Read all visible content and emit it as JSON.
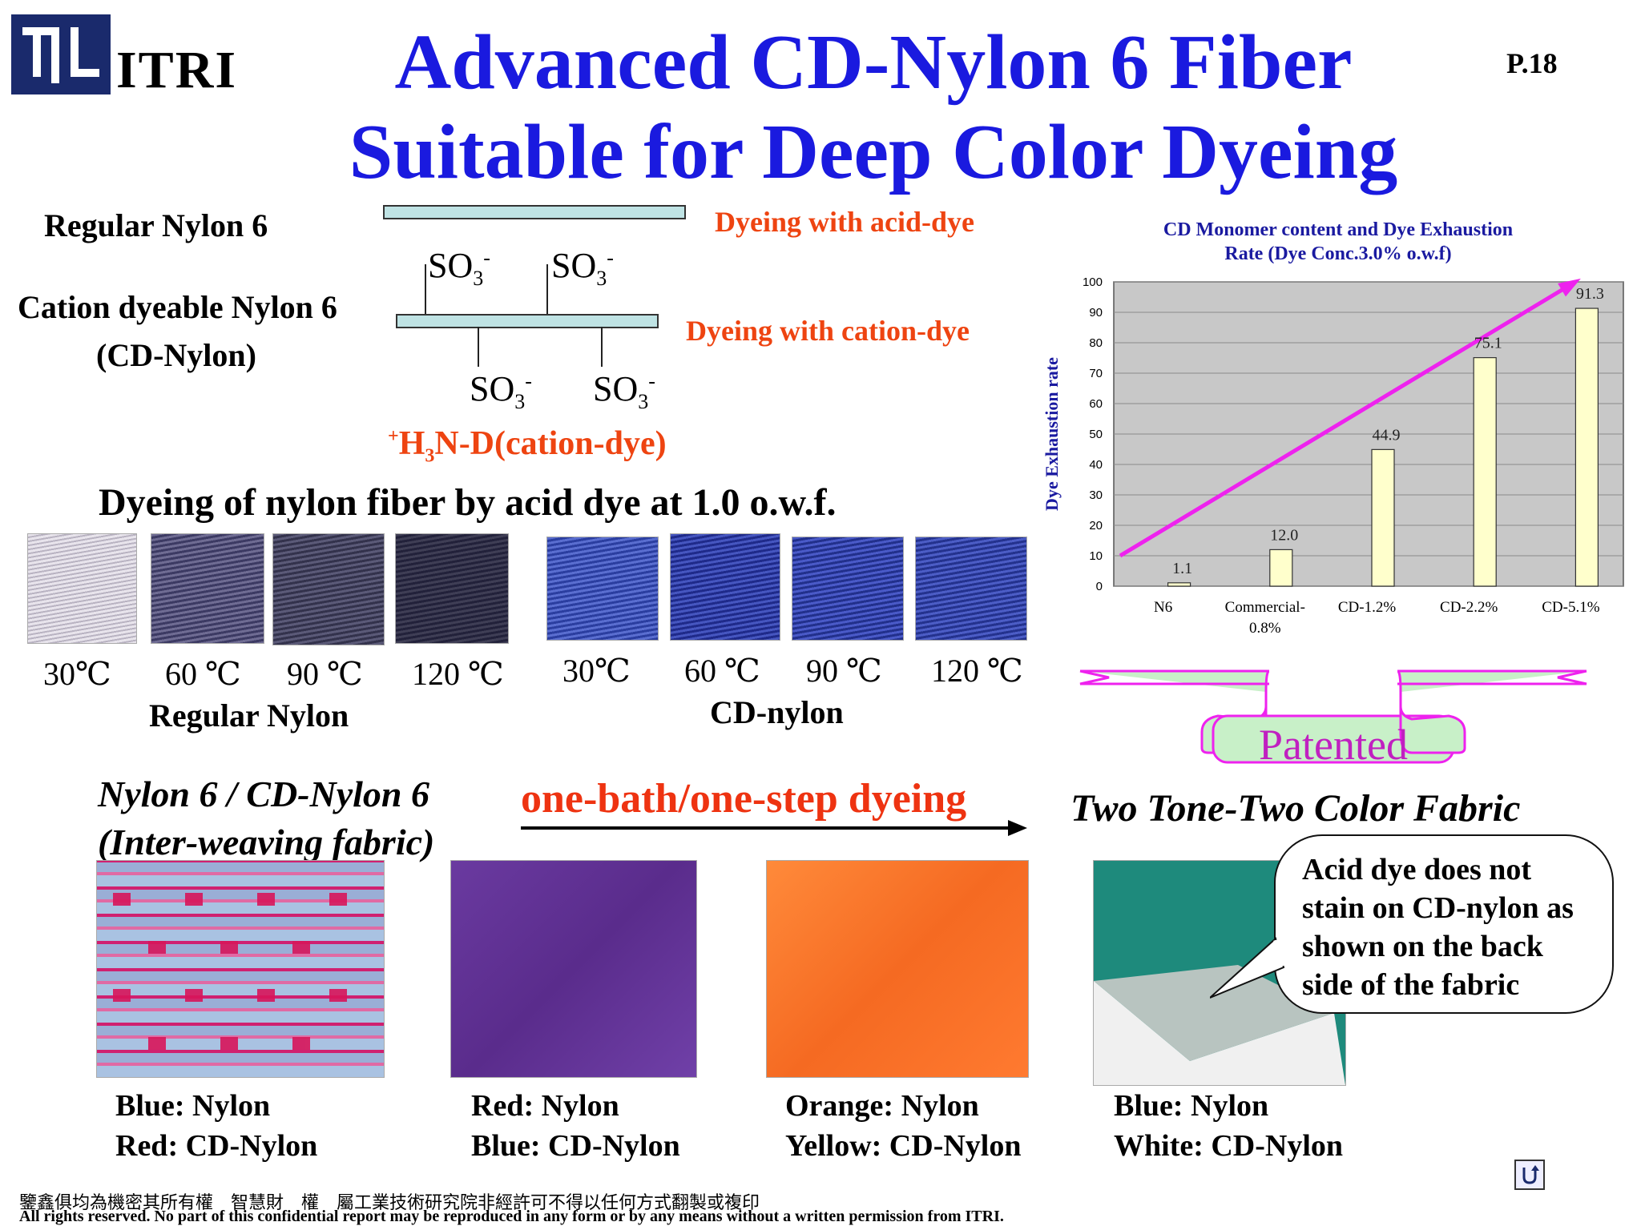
{
  "header": {
    "logo_text": "ITRI",
    "title_line1": "Advanced CD-Nylon 6 Fiber",
    "title_line2": "Suitable for Deep Color Dyeing",
    "page_number": "P.18"
  },
  "structure": {
    "regular_label": "Regular Nylon 6",
    "cd_label_line1": "Cation dyeable Nylon 6",
    "cd_label_line2": "(CD-Nylon)",
    "acid_dye_label": "Dyeing with  acid-dye",
    "cation_dye_label": "Dyeing with cation-dye",
    "so3": "SO",
    "so3_sub": "3",
    "so3_sup": "-",
    "cation_dye_prefix_sup": "+",
    "cation_dye_h": "H",
    "cation_dye_sub": "3",
    "cation_dye_rest": "N-D(cation-dye)"
  },
  "dyeing_section": {
    "heading": "Dyeing of nylon fiber by acid dye at 1.0 o.w.f.",
    "regular_temps": [
      "30℃",
      "60 ℃",
      "90 ℃",
      "120 ℃"
    ],
    "cd_temps": [
      "30℃",
      "60 ℃",
      "90 ℃",
      "120 ℃"
    ],
    "regular_group_label": "Regular Nylon",
    "cd_group_label": "CD-nylon"
  },
  "chart_data": {
    "type": "bar",
    "title": "CD Monomer content and Dye Exhaustion Rate (Dye Conc.3.0% o.w.f)",
    "title_line1": "CD Monomer content and Dye Exhaustion",
    "title_line2": "Rate (Dye Conc.3.0% o.w.f)",
    "ylabel": "Dye Exhaustion rate",
    "xlabel": "",
    "categories": [
      "N6",
      "Commercial-0.8%",
      "CD-1.2%",
      "CD-2.2%",
      "CD-5.1%"
    ],
    "category_lines": [
      [
        "N6"
      ],
      [
        "Commercial-",
        "0.8%"
      ],
      [
        "CD-1.2%"
      ],
      [
        "CD-2.2%"
      ],
      [
        "CD-5.1%"
      ]
    ],
    "values": [
      1.1,
      12.0,
      44.9,
      75.1,
      91.3
    ],
    "value_labels": [
      "1.1",
      "12.0",
      "44.9",
      "75.1",
      "91.3"
    ],
    "ylim": [
      0,
      100
    ],
    "yticks": [
      "0",
      "10",
      "20",
      "30",
      "40",
      "50",
      "60",
      "70",
      "80",
      "90",
      "100"
    ],
    "grid": true,
    "bar_color": "#ffffcc",
    "plot_bg": "#c8c8c8",
    "arrow_color": "#ee22ee"
  },
  "patent_banner": {
    "text": "Patented",
    "fill_color": "#c8f0c8",
    "stroke_color": "#ee22ee"
  },
  "fabric_section": {
    "left_label_line1": "Nylon 6 / CD-Nylon 6",
    "left_label_line2": "(Inter-weaving fabric)",
    "process_label": "one-bath/one-step dyeing",
    "result_label": "Two Tone-Two Color Fabric",
    "callout": "Acid dye does not stain on CD-nylon as shown on the back side of the fabric",
    "fabrics": [
      {
        "line1": "Blue: Nylon",
        "line2": "Red: CD-Nylon"
      },
      {
        "line1": "Red: Nylon",
        "line2": "Blue: CD-Nylon"
      },
      {
        "line1": "Orange: Nylon",
        "line2": "Yellow: CD-Nylon"
      },
      {
        "line1": "Blue: Nylon",
        "line2": "White: CD-Nylon"
      }
    ]
  },
  "footer": {
    "line1": "鑒鑫俱均為機密其所有權　智慧財　權　屬工業技術研究院非經許可不得以任何方式翻製或複印",
    "line2": "All rights reserved.  No part of this confidential report may be reproduced in any form or by any means without a written permission from ITRI."
  }
}
